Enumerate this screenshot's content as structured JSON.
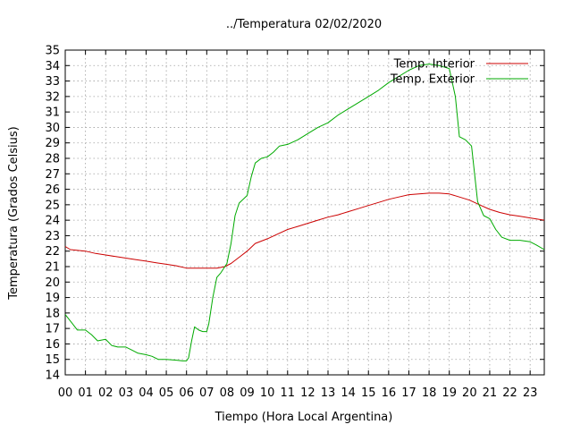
{
  "chart_data": {
    "type": "line",
    "title": "../Temperatura 02/02/2020",
    "xlabel": "Tiempo (Hora Local Argentina)",
    "ylabel": "Temperatura (Grados Celsius)",
    "x_ticks": [
      "00",
      "01",
      "02",
      "03",
      "04",
      "05",
      "06",
      "07",
      "08",
      "09",
      "10",
      "11",
      "12",
      "13",
      "14",
      "15",
      "16",
      "17",
      "18",
      "19",
      "20",
      "21",
      "22",
      "23"
    ],
    "y_ticks": [
      "14",
      "15",
      "16",
      "17",
      "18",
      "19",
      "20",
      "21",
      "22",
      "23",
      "24",
      "25",
      "26",
      "27",
      "28",
      "29",
      "30",
      "31",
      "32",
      "33",
      "34",
      "35"
    ],
    "xlim": [
      0,
      23.7
    ],
    "ylim": [
      14,
      35
    ],
    "grid": true,
    "legend_position": "top-right",
    "series": [
      {
        "name": "Temp. Interior",
        "color": "#cc0000",
        "x": [
          0,
          0.25,
          1,
          1.5,
          2,
          2.5,
          3,
          3.5,
          4,
          4.5,
          5,
          5.5,
          6,
          7,
          7.5,
          7.9,
          8.2,
          8.7,
          9,
          9.4,
          10,
          10.5,
          11,
          11.5,
          12,
          12.5,
          13,
          13.5,
          14,
          14.5,
          15,
          15.5,
          16,
          16.5,
          17,
          17.5,
          18,
          18.5,
          19,
          19.5,
          20,
          20.5,
          21,
          21.5,
          22,
          22.5,
          23,
          23.7
        ],
        "y": [
          22.3,
          22.1,
          22.0,
          21.85,
          21.75,
          21.65,
          21.55,
          21.45,
          21.35,
          21.25,
          21.15,
          21.05,
          20.9,
          20.9,
          20.9,
          21.0,
          21.2,
          21.7,
          22.0,
          22.5,
          22.8,
          23.1,
          23.4,
          23.6,
          23.8,
          24.0,
          24.2,
          24.35,
          24.55,
          24.75,
          24.95,
          25.15,
          25.35,
          25.5,
          25.65,
          25.7,
          25.75,
          25.75,
          25.7,
          25.5,
          25.3,
          25.0,
          24.7,
          24.5,
          24.35,
          24.25,
          24.15,
          24.0
        ]
      },
      {
        "name": "Temp. Exterior",
        "color": "#00aa00",
        "x": [
          0,
          0.3,
          0.6,
          1,
          1.3,
          1.6,
          2,
          2.3,
          2.6,
          3,
          3.3,
          3.6,
          4,
          4.3,
          4.6,
          5,
          5.5,
          5.8,
          6,
          6.1,
          6.25,
          6.4,
          6.6,
          6.8,
          7,
          7.1,
          7.3,
          7.5,
          7.7,
          8,
          8.2,
          8.4,
          8.6,
          9,
          9.2,
          9.4,
          9.7,
          10,
          10.3,
          10.6,
          11,
          11.5,
          12,
          12.5,
          13,
          13.5,
          14,
          14.5,
          15,
          15.5,
          16,
          16.5,
          17,
          17.5,
          18,
          18.5,
          19,
          19.3,
          19.5,
          19.8,
          20.1,
          20.4,
          20.7,
          21,
          21.3,
          21.6,
          22,
          22.5,
          23,
          23.3,
          23.7
        ],
        "y": [
          17.9,
          17.4,
          16.9,
          16.9,
          16.6,
          16.2,
          16.3,
          15.9,
          15.8,
          15.8,
          15.6,
          15.4,
          15.3,
          15.2,
          15.0,
          15.0,
          14.95,
          14.9,
          14.9,
          15.1,
          16.2,
          17.1,
          16.9,
          16.8,
          16.8,
          17.3,
          19.0,
          20.3,
          20.6,
          21.2,
          22.5,
          24.3,
          25.1,
          25.6,
          26.8,
          27.7,
          28.0,
          28.1,
          28.4,
          28.8,
          28.9,
          29.2,
          29.6,
          30.0,
          30.3,
          30.8,
          31.2,
          31.6,
          32.0,
          32.4,
          32.9,
          33.3,
          33.7,
          34.0,
          34.1,
          34.0,
          33.8,
          32.0,
          29.4,
          29.2,
          28.8,
          25.2,
          24.3,
          24.1,
          23.4,
          22.9,
          22.7,
          22.7,
          22.6,
          22.4,
          22.1
        ]
      }
    ]
  }
}
